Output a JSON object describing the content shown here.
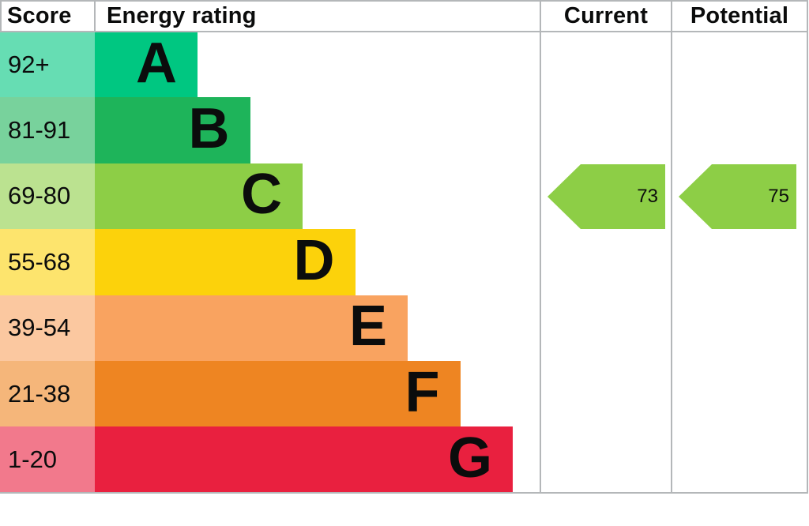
{
  "header": {
    "score": "Score",
    "energy_rating": "Energy rating",
    "current": "Current",
    "potential": "Potential"
  },
  "bands": [
    {
      "score_range": "92+",
      "letter": "A",
      "color": "#00c781"
    },
    {
      "score_range": "81-91",
      "letter": "B",
      "color": "#1eb45a"
    },
    {
      "score_range": "69-80",
      "letter": "C",
      "color": "#8dce46"
    },
    {
      "score_range": "55-68",
      "letter": "D",
      "color": "#fcd20b"
    },
    {
      "score_range": "39-54",
      "letter": "E",
      "color": "#f9a360"
    },
    {
      "score_range": "21-38",
      "letter": "F",
      "color": "#ee8522"
    },
    {
      "score_range": "1-20",
      "letter": "G",
      "color": "#e9203f"
    }
  ],
  "current": {
    "value": "73",
    "band": "C",
    "arrow_color": "#8dce46"
  },
  "potential": {
    "value": "75",
    "band": "C",
    "arrow_color": "#8dce46"
  },
  "grid_color": "#b4b7b9",
  "text_color": "#0b0c0c",
  "chart_data": {
    "type": "bar",
    "title": "Energy rating (EPC band chart)",
    "categories": [
      "A",
      "B",
      "C",
      "D",
      "E",
      "F",
      "G"
    ],
    "score_ranges": [
      "92+",
      "81-91",
      "69-80",
      "55-68",
      "39-54",
      "21-38",
      "1-20"
    ],
    "values": [
      1,
      2,
      3,
      4,
      5,
      6,
      7
    ],
    "bar_colors": [
      "#00c781",
      "#1eb45a",
      "#8dce46",
      "#fcd20b",
      "#f9a360",
      "#ee8522",
      "#e9203f"
    ],
    "columns": [
      "Score",
      "Energy rating",
      "Current",
      "Potential"
    ],
    "current_rating": 73,
    "current_band": "C",
    "potential_rating": 75,
    "potential_band": "C",
    "legend_position": "none",
    "grid": false,
    "orientation": "horizontal"
  }
}
